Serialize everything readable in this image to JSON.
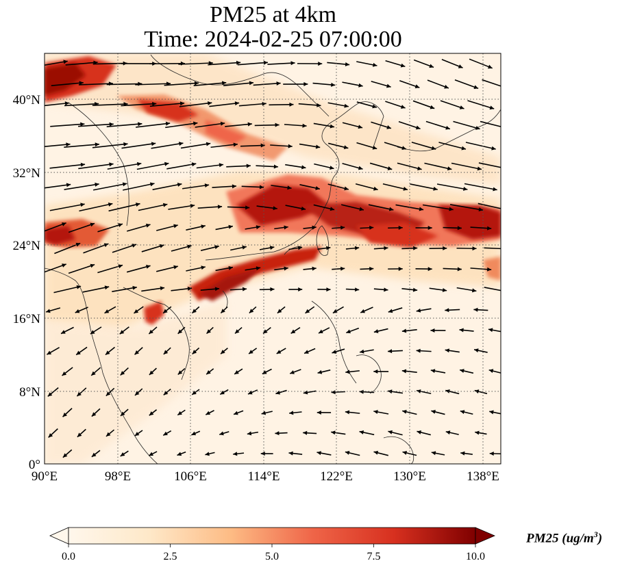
{
  "title": {
    "line1": "PM25 at 4km",
    "line2": "Time: 2024-02-25 07:00:00"
  },
  "map": {
    "lon_range": [
      90,
      140
    ],
    "lat_range": [
      0,
      45
    ],
    "x_ticks": [
      "90°E",
      "98°E",
      "106°E",
      "114°E",
      "122°E",
      "130°E",
      "138°E"
    ],
    "y_ticks": [
      "0°",
      "8°N",
      "16°N",
      "24°N",
      "32°N",
      "40°N"
    ],
    "gridlines": true,
    "colormap": "OrRd"
  },
  "colorbar": {
    "ticks": [
      "0.0",
      "2.5",
      "5.0",
      "7.5",
      "10.0"
    ],
    "range": [
      0,
      10
    ],
    "label_main": "PM25 (ug/m",
    "label_sup": "3",
    "label_end": ")",
    "extend": "both"
  },
  "colors": {
    "low": "#fff7ec",
    "mid": "#fdbb84",
    "high": "#d7301f",
    "max": "#7f0000"
  }
}
